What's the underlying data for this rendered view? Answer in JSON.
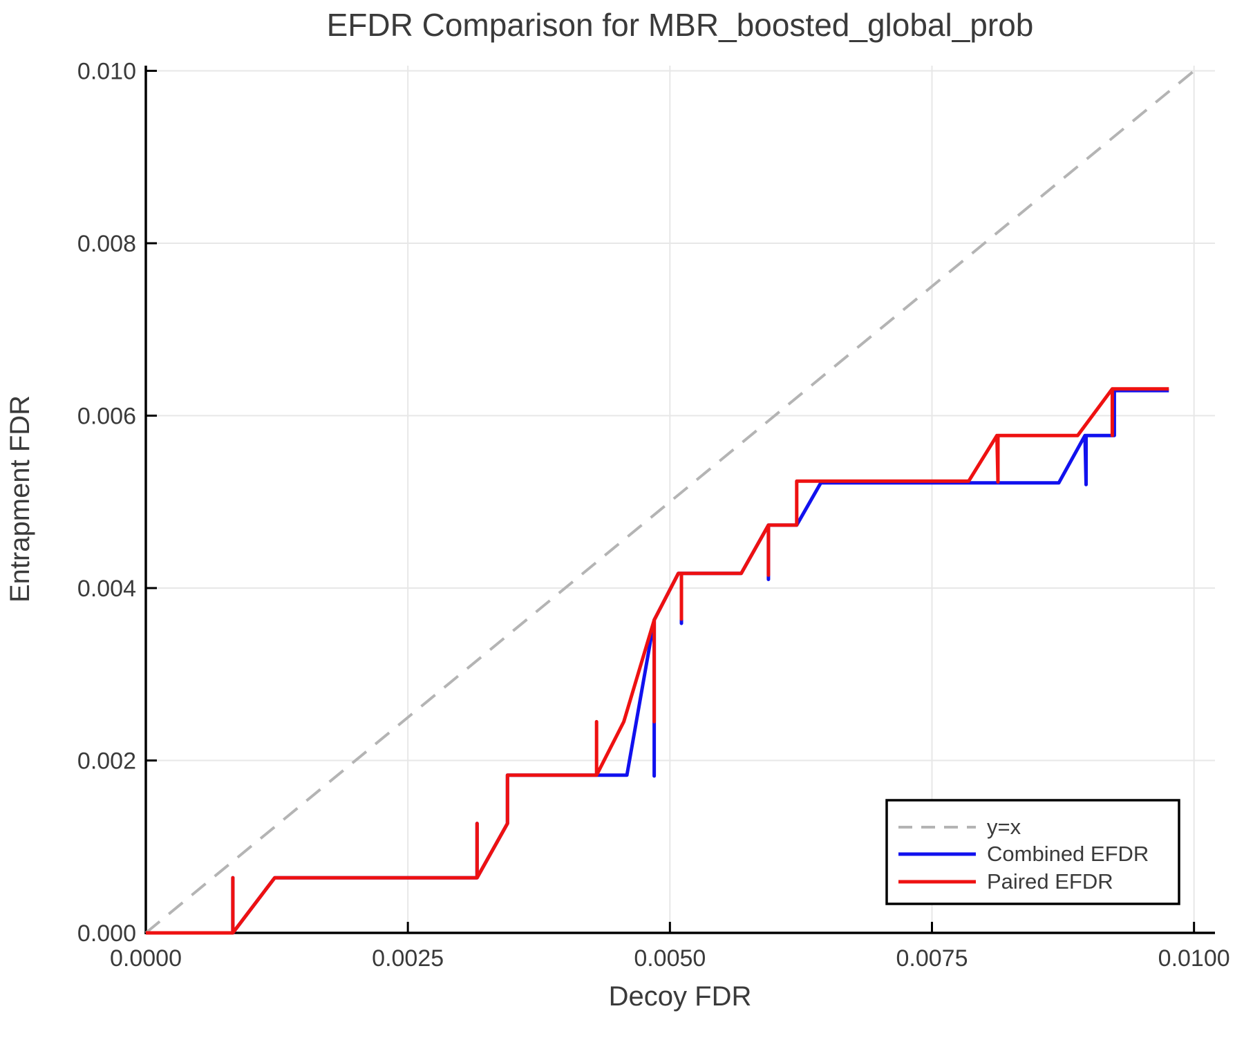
{
  "title": "EFDR Comparison for MBR_boosted_global_prob",
  "colors": {
    "combined": "#1111ee",
    "paired": "#ee1111",
    "identity": "#b4b4b4",
    "grid": "#e7e7e7",
    "spine": "#000000",
    "text": "#3a3a3a",
    "legend_border": "#000000",
    "legend_bg": "#ffffff"
  },
  "chart_data": {
    "type": "line",
    "title": "EFDR Comparison for MBR_boosted_global_prob",
    "xlabel": "Decoy FDR",
    "ylabel": "Entrapment FDR",
    "xlim": [
      0,
      0.0102
    ],
    "ylim": [
      0,
      0.01006
    ],
    "grid": true,
    "legend_position": "lower right",
    "xticks": {
      "values": [
        0,
        0.0025,
        0.005,
        0.0075,
        0.01
      ],
      "labels": [
        "0.0000",
        "0.0025",
        "0.0050",
        "0.0075",
        "0.0100"
      ]
    },
    "yticks": {
      "values": [
        0,
        0.002,
        0.004,
        0.006,
        0.008,
        0.01
      ],
      "labels": [
        "0.000",
        "0.002",
        "0.004",
        "0.006",
        "0.008",
        "0.010"
      ]
    },
    "series": [
      {
        "name": "y=x",
        "style": "dashed",
        "color": "#b4b4b4",
        "width": 4,
        "points": [
          [
            0,
            0
          ],
          [
            0.01,
            0.01
          ]
        ]
      },
      {
        "name": "Combined EFDR",
        "style": "solid",
        "color": "#1111ee",
        "width": 5,
        "points": [
          [
            0.0,
            0.0
          ],
          [
            0.00083,
            0.0
          ],
          [
            0.00083,
            0.00064
          ],
          [
            0.00083,
            0.0
          ],
          [
            0.00123,
            0.00064
          ],
          [
            0.00316,
            0.00064
          ],
          [
            0.00316,
            0.00127
          ],
          [
            0.00316,
            0.00064
          ],
          [
            0.00345,
            0.00127
          ],
          [
            0.00345,
            0.00183
          ],
          [
            0.00459,
            0.00183
          ],
          [
            0.00485,
            0.00363
          ],
          [
            0.00485,
            0.00182
          ],
          [
            0.00485,
            0.00363
          ],
          [
            0.00508,
            0.00417
          ],
          [
            0.00511,
            0.00417
          ],
          [
            0.00511,
            0.00359
          ],
          [
            0.00511,
            0.00417
          ],
          [
            0.00568,
            0.00417
          ],
          [
            0.00594,
            0.00473
          ],
          [
            0.00594,
            0.0041
          ],
          [
            0.00594,
            0.00473
          ],
          [
            0.00621,
            0.00473
          ],
          [
            0.00644,
            0.00522
          ],
          [
            0.00871,
            0.00522
          ],
          [
            0.00896,
            0.00577
          ],
          [
            0.00897,
            0.0052
          ],
          [
            0.00897,
            0.00577
          ],
          [
            0.00924,
            0.00577
          ],
          [
            0.00924,
            0.00629
          ],
          [
            0.00976,
            0.00629
          ]
        ]
      },
      {
        "name": "Paired EFDR",
        "style": "solid",
        "color": "#ee1111",
        "width": 5,
        "points": [
          [
            0.0,
            0.0
          ],
          [
            0.00083,
            0.0
          ],
          [
            0.00083,
            0.00064
          ],
          [
            0.00083,
            0.0
          ],
          [
            0.00123,
            0.00064
          ],
          [
            0.00316,
            0.00064
          ],
          [
            0.00316,
            0.00127
          ],
          [
            0.00316,
            0.00064
          ],
          [
            0.00345,
            0.00127
          ],
          [
            0.00345,
            0.00183
          ],
          [
            0.0043,
            0.00183
          ],
          [
            0.0043,
            0.00245
          ],
          [
            0.0043,
            0.00183
          ],
          [
            0.00456,
            0.00245
          ],
          [
            0.00485,
            0.00363
          ],
          [
            0.00485,
            0.00245
          ],
          [
            0.00485,
            0.00363
          ],
          [
            0.00508,
            0.00417
          ],
          [
            0.00511,
            0.00417
          ],
          [
            0.00511,
            0.00364
          ],
          [
            0.00511,
            0.00417
          ],
          [
            0.00568,
            0.00417
          ],
          [
            0.00594,
            0.00473
          ],
          [
            0.00594,
            0.00415
          ],
          [
            0.00594,
            0.00473
          ],
          [
            0.00621,
            0.00473
          ],
          [
            0.00621,
            0.00524
          ],
          [
            0.00785,
            0.00524
          ],
          [
            0.00812,
            0.00577
          ],
          [
            0.00813,
            0.00523
          ],
          [
            0.00813,
            0.00577
          ],
          [
            0.00889,
            0.00577
          ],
          [
            0.00922,
            0.00631
          ],
          [
            0.00922,
            0.00577
          ],
          [
            0.00922,
            0.00631
          ],
          [
            0.00976,
            0.00631
          ]
        ]
      }
    ]
  }
}
